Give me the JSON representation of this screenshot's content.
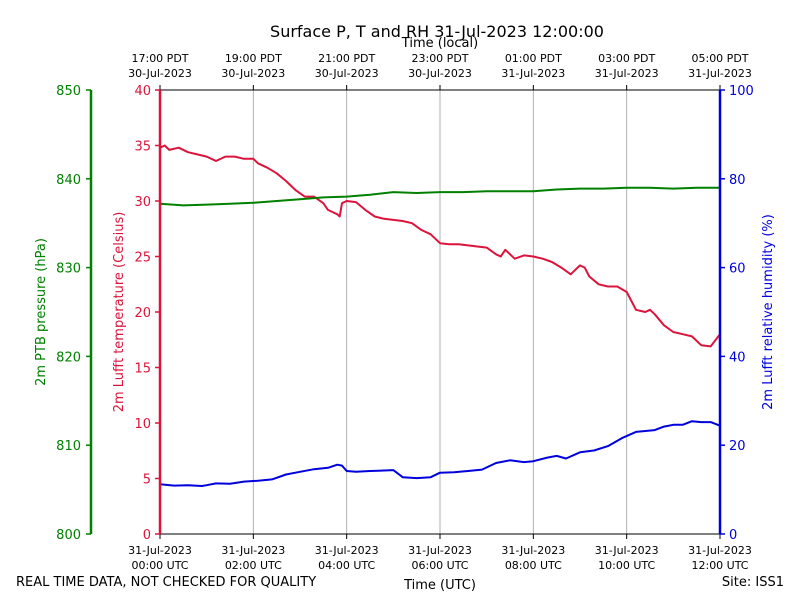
{
  "title": "Surface P, T and RH 31-Jul-2023 12:00:00",
  "footer": {
    "note": "REAL TIME DATA, NOT CHECKED FOR QUALITY",
    "site": "Site: ISS1"
  },
  "chart_data": {
    "type": "line",
    "title": "Surface P, T and RH 31-Jul-2023 12:00:00",
    "xlabel_bottom": "Time (UTC)",
    "xlabel_top": "Time (local)",
    "xlim_hours_utc": [
      0,
      12
    ],
    "grid": "vertical",
    "bottom_ticks": [
      {
        "hour": 0,
        "line1": "31-Jul-2023",
        "line2": "00:00 UTC"
      },
      {
        "hour": 2,
        "line1": "31-Jul-2023",
        "line2": "02:00 UTC"
      },
      {
        "hour": 4,
        "line1": "31-Jul-2023",
        "line2": "04:00 UTC"
      },
      {
        "hour": 6,
        "line1": "31-Jul-2023",
        "line2": "06:00 UTC"
      },
      {
        "hour": 8,
        "line1": "31-Jul-2023",
        "line2": "08:00 UTC"
      },
      {
        "hour": 10,
        "line1": "31-Jul-2023",
        "line2": "10:00 UTC"
      },
      {
        "hour": 12,
        "line1": "31-Jul-2023",
        "line2": "12:00 UTC"
      }
    ],
    "top_ticks": [
      {
        "hour": 0,
        "line1": "17:00 PDT",
        "line2": "30-Jul-2023"
      },
      {
        "hour": 2,
        "line1": "19:00 PDT",
        "line2": "30-Jul-2023"
      },
      {
        "hour": 4,
        "line1": "21:00 PDT",
        "line2": "30-Jul-2023"
      },
      {
        "hour": 6,
        "line1": "23:00 PDT",
        "line2": "30-Jul-2023"
      },
      {
        "hour": 8,
        "line1": "01:00 PDT",
        "line2": "31-Jul-2023"
      },
      {
        "hour": 10,
        "line1": "03:00 PDT",
        "line2": "31-Jul-2023"
      },
      {
        "hour": 12,
        "line1": "05:00 PDT",
        "line2": "31-Jul-2023"
      }
    ],
    "axes": {
      "pressure": {
        "label": "2m PTB pressure (hPa)",
        "ylim": [
          800,
          850
        ],
        "ticks": [
          800,
          810,
          820,
          830,
          840,
          850
        ],
        "color": "#008000"
      },
      "temperature": {
        "label": "2m Lufft temperature (Celsius)",
        "ylim": [
          0,
          40
        ],
        "ticks": [
          0,
          5,
          10,
          15,
          20,
          25,
          30,
          35,
          40
        ],
        "color": "#dc143c"
      },
      "humidity": {
        "label": "2m Lufft relative humidity (%)",
        "ylim": [
          0,
          100
        ],
        "ticks": [
          0,
          20,
          40,
          60,
          80,
          100
        ],
        "color": "#0000dd"
      }
    },
    "series": [
      {
        "key": "temperature",
        "color": "#dc143c",
        "x": [
          0,
          0.1,
          0.2,
          0.4,
          0.6,
          0.8,
          1.0,
          1.2,
          1.4,
          1.5,
          1.6,
          1.8,
          2.0,
          2.1,
          2.3,
          2.5,
          2.7,
          2.9,
          3.1,
          3.3,
          3.5,
          3.6,
          3.7,
          3.8,
          3.85,
          3.9,
          4.0,
          4.2,
          4.4,
          4.6,
          4.8,
          5.0,
          5.2,
          5.4,
          5.6,
          5.8,
          6.0,
          6.2,
          6.4,
          6.6,
          6.8,
          7.0,
          7.2,
          7.3,
          7.4,
          7.6,
          7.8,
          8.0,
          8.2,
          8.4,
          8.6,
          8.8,
          8.9,
          9.0,
          9.1,
          9.2,
          9.4,
          9.6,
          9.8,
          10.0,
          10.2,
          10.4,
          10.5,
          10.6,
          10.8,
          11.0,
          11.2,
          11.4,
          11.6,
          11.8,
          12.0
        ],
        "y": [
          34.8,
          35.0,
          34.6,
          34.8,
          34.4,
          34.2,
          34.0,
          33.6,
          34.0,
          34.0,
          34.0,
          33.8,
          33.8,
          33.4,
          33.0,
          32.5,
          31.8,
          31.0,
          30.4,
          30.4,
          29.8,
          29.2,
          29.0,
          28.8,
          28.6,
          29.8,
          30.0,
          29.9,
          29.2,
          28.6,
          28.4,
          28.3,
          28.2,
          28.0,
          27.4,
          27.0,
          26.2,
          26.1,
          26.1,
          26.0,
          25.9,
          25.8,
          25.2,
          25.0,
          25.6,
          24.8,
          25.1,
          25.0,
          24.8,
          24.5,
          24.0,
          23.4,
          23.8,
          24.2,
          24.0,
          23.2,
          22.5,
          22.3,
          22.3,
          21.8,
          20.2,
          20.0,
          20.2,
          19.8,
          18.8,
          18.2,
          18.0,
          17.8,
          17.0,
          16.9,
          18.0
        ]
      },
      {
        "key": "pressure",
        "color": "#008000",
        "x": [
          0,
          0.5,
          1.0,
          1.5,
          2.0,
          2.5,
          3.0,
          3.5,
          4.0,
          4.5,
          5.0,
          5.5,
          6.0,
          6.5,
          7.0,
          7.5,
          8.0,
          8.5,
          9.0,
          9.5,
          10.0,
          10.5,
          11.0,
          11.5,
          12.0
        ],
        "y": [
          837.2,
          837.0,
          837.1,
          837.2,
          837.3,
          837.5,
          837.7,
          837.9,
          838.0,
          838.2,
          838.5,
          838.4,
          838.5,
          838.5,
          838.6,
          838.6,
          838.6,
          838.8,
          838.9,
          838.9,
          839.0,
          839.0,
          838.9,
          839.0,
          839.0
        ]
      },
      {
        "key": "humidity",
        "color": "#0000dd",
        "x": [
          0,
          0.3,
          0.6,
          0.9,
          1.0,
          1.2,
          1.5,
          1.8,
          2.1,
          2.4,
          2.7,
          3.0,
          3.3,
          3.6,
          3.8,
          3.9,
          4.0,
          4.2,
          4.5,
          4.8,
          5.0,
          5.2,
          5.5,
          5.8,
          6.0,
          6.3,
          6.6,
          6.9,
          7.2,
          7.5,
          7.8,
          8.0,
          8.3,
          8.5,
          8.7,
          9.0,
          9.3,
          9.6,
          9.9,
          10.2,
          10.4,
          10.6,
          10.8,
          11.0,
          11.2,
          11.4,
          11.6,
          11.8,
          12.0
        ],
        "y": [
          11.2,
          10.9,
          11.0,
          10.8,
          11.0,
          11.4,
          11.3,
          11.8,
          12.0,
          12.3,
          13.4,
          14.0,
          14.6,
          14.9,
          15.6,
          15.4,
          14.2,
          14.0,
          14.2,
          14.3,
          14.4,
          12.8,
          12.6,
          12.8,
          13.8,
          13.9,
          14.2,
          14.5,
          16.0,
          16.6,
          16.2,
          16.4,
          17.2,
          17.6,
          17.0,
          18.4,
          18.8,
          19.8,
          21.6,
          23.0,
          23.2,
          23.4,
          24.2,
          24.6,
          24.6,
          25.4,
          25.2,
          25.2,
          24.4
        ]
      }
    ]
  }
}
